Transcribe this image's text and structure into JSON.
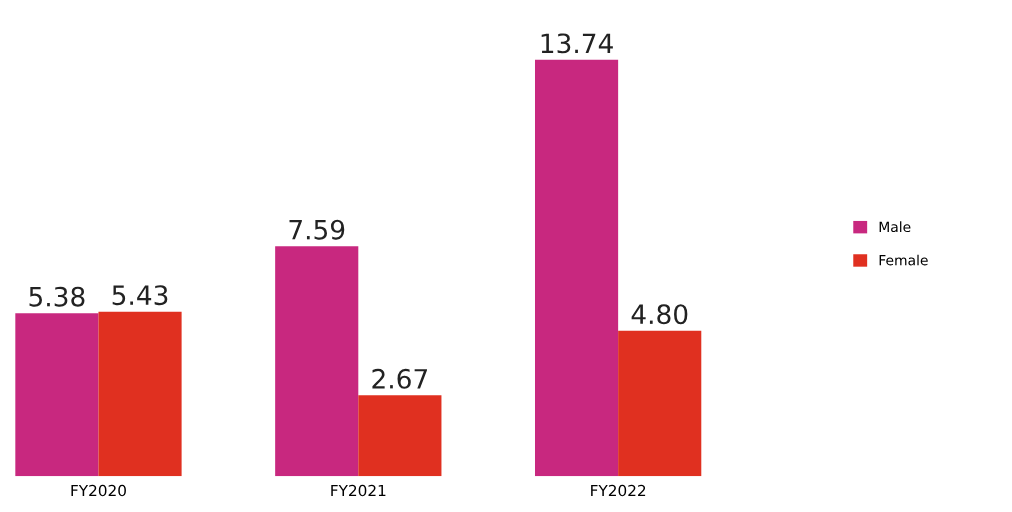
{
  "chart_data": {
    "type": "bar",
    "categories": [
      "FY2020",
      "FY2021",
      "FY2022"
    ],
    "series": [
      {
        "name": "Male",
        "color": "#c8287f",
        "values": [
          5.38,
          7.59,
          13.74
        ],
        "value_labels": [
          "5.38",
          "7.59",
          "13.74"
        ]
      },
      {
        "name": "Female",
        "color": "#e03020",
        "values": [
          5.43,
          2.67,
          4.8
        ],
        "value_labels": [
          "5.43",
          "2.67",
          "4.80"
        ]
      }
    ],
    "legend": "right",
    "grid": false
  }
}
